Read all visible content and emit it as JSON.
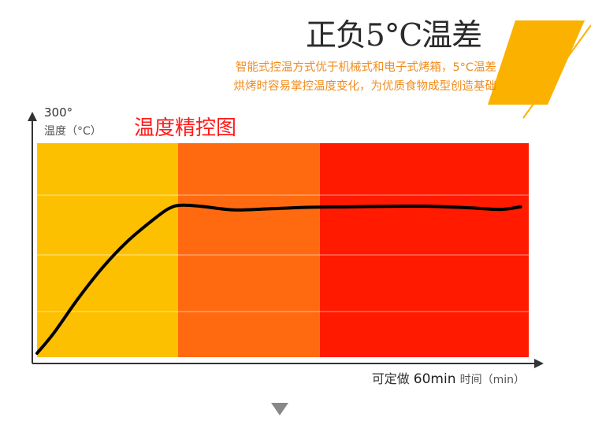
{
  "header": {
    "title": "正负5°C温差",
    "subtitle_line1": "智能式控温方式优于机械式和电子式烤箱，5°C温差",
    "subtitle_line2": "烘烤时容易掌控温度变化，为优质食物成型创造基础"
  },
  "colors": {
    "accent": "#fbb100",
    "zone1": "#fdc000",
    "zone2": "#ff6a10",
    "zone3": "#ff1a00",
    "line": "#000000"
  },
  "chart_data": {
    "type": "line",
    "title": "温度精控图",
    "ytick_top": "300°",
    "ylabel": "温度（°C）",
    "xlabel_prefix": "可定做",
    "xlabel_value": "60min",
    "xlabel_suffix": "时间（min）",
    "ylim": [
      0,
      300
    ],
    "xlim": [
      0,
      60
    ],
    "zones": [
      {
        "x0": 0,
        "x1": 17.2
      },
      {
        "x0": 17.2,
        "x1": 34.5
      },
      {
        "x0": 34.5,
        "x1": 60
      }
    ],
    "series": [
      {
        "x": [
          0,
          2,
          5,
          8,
          11,
          14,
          16,
          17.5,
          20,
          24,
          28,
          33,
          38,
          43,
          48,
          53,
          56.5,
          59
        ],
        "y": [
          0,
          38,
          105,
          165,
          215,
          255,
          278,
          285,
          283,
          276,
          278,
          281,
          282,
          283,
          283,
          280,
          277,
          282
        ]
      }
    ]
  }
}
